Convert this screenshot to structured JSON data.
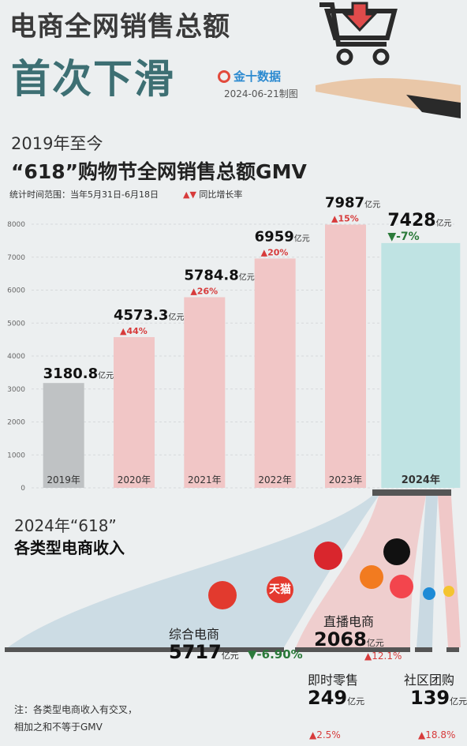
{
  "header": {
    "title_line1": "电商全网销售总额",
    "title_line2": "首次下滑",
    "brand": "金十数据",
    "date": "2024-06-21制图"
  },
  "chart_section": {
    "since": "2019年至今",
    "subtitle": "“618”购物节全网销售总额GMV",
    "range_note": "统计时间范围：当年5月31日-6月18日",
    "legend_marks": "▲▼",
    "legend_text": "同比增长率"
  },
  "chart_data": {
    "type": "bar",
    "categories": [
      "2019年",
      "2020年",
      "2021年",
      "2022年",
      "2023年",
      "2024年"
    ],
    "values": [
      3180.8,
      4573.3,
      5784.8,
      6959,
      7987,
      7428
    ],
    "value_labels": [
      "3180.8",
      "4573.3",
      "5784.8",
      "6959",
      "7987",
      "7428"
    ],
    "unit": "亿元",
    "growth": [
      "",
      "▲44%",
      "▲26%",
      "▲20%",
      "▲15%",
      "▼-7%"
    ],
    "yticks": [
      0,
      1000,
      2000,
      3000,
      4000,
      5000,
      6000,
      7000,
      8000
    ],
    "ylim": [
      0,
      8000
    ],
    "colors": {
      "bar_2019": "#bfc2c4",
      "bar_up": "#f1c6c6",
      "bar_2024": "#bfe3e3",
      "up": "#d73b3b",
      "down": "#2b7a3a"
    }
  },
  "breakdown": {
    "title_line1": "2024年“618”",
    "title_line2": "各类型电商收入",
    "comprehensive": {
      "label": "综合电商",
      "value": "5717",
      "unit": "亿元",
      "change": "▼-6.90%"
    },
    "livestream": {
      "label": "直播电商",
      "value": "2068",
      "unit": "亿元",
      "change": "▲12.1%"
    },
    "instant": {
      "label": "即时零售",
      "value": "249",
      "unit": "亿元",
      "change": "▲2.5%"
    },
    "community": {
      "label": "社区团购",
      "value": "139",
      "unit": "亿元",
      "change": "▲18.8%"
    },
    "logos": {
      "tmall": "天猫"
    }
  },
  "footnote": {
    "line1": "注：各类型电商收入有交叉，",
    "line2": "相加之和不等于GMV"
  }
}
